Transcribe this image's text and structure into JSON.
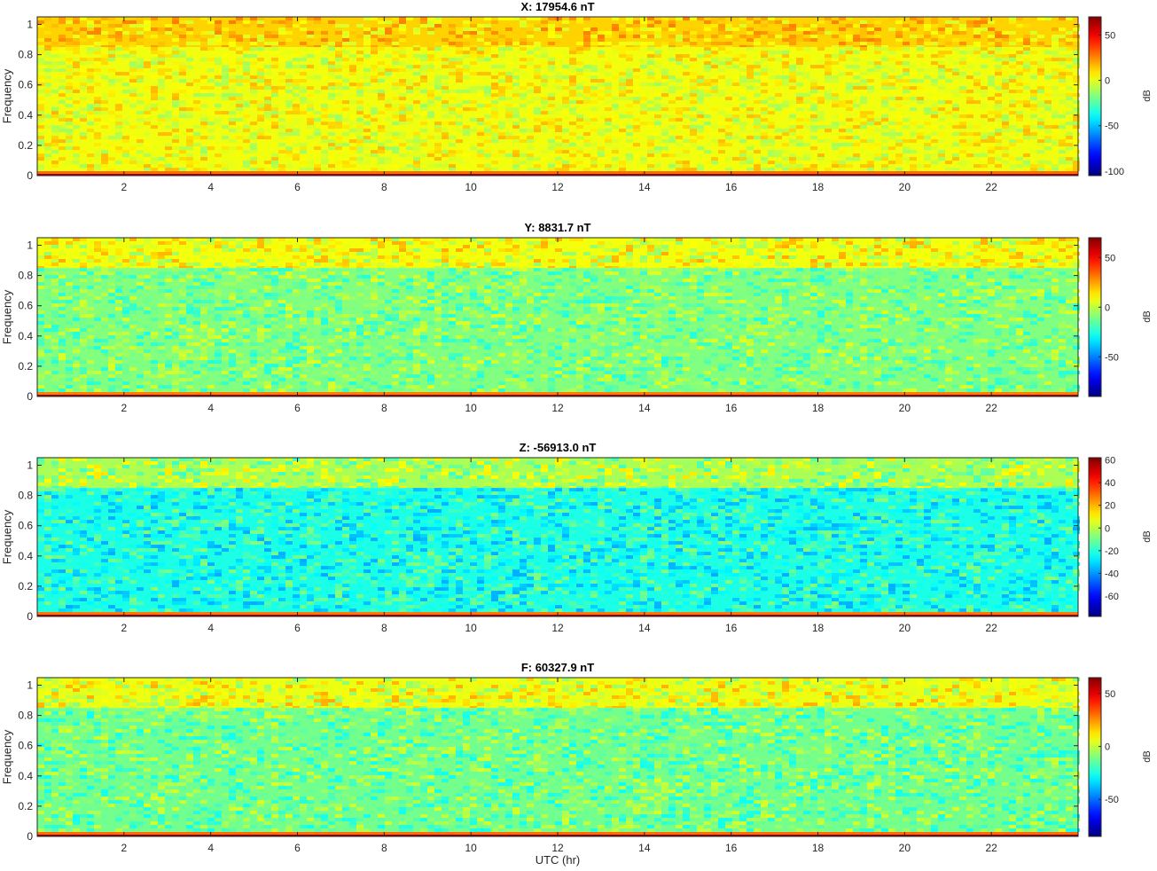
{
  "chart_data": [
    {
      "type": "heatmap",
      "title": "X: 17954.6 nT",
      "ylabel": "Frequency",
      "xlim": [
        0,
        24
      ],
      "ylim": [
        0,
        1.05
      ],
      "xticks": [
        2,
        4,
        6,
        8,
        10,
        12,
        14,
        16,
        18,
        20,
        22
      ],
      "yticks": [
        0,
        0.2,
        0.4,
        0.6,
        0.8,
        1
      ],
      "colorbar": {
        "label": "dB",
        "range": [
          -105,
          70
        ],
        "ticks": [
          50,
          0,
          -50,
          -100
        ]
      },
      "bands": [
        {
          "y_from": 0.0,
          "y_to": 0.012,
          "db": 65
        },
        {
          "y_from": 0.012,
          "y_to": 0.03,
          "db": 30
        },
        {
          "y_from": 0.03,
          "y_to": 0.85,
          "db": 2
        },
        {
          "y_from": 0.85,
          "y_to": 1.05,
          "db": 12
        }
      ]
    },
    {
      "type": "heatmap",
      "title": "Y: 8831.7 nT",
      "ylabel": "Frequency",
      "xlim": [
        0,
        24
      ],
      "ylim": [
        0,
        1.05
      ],
      "xticks": [
        2,
        4,
        6,
        8,
        10,
        12,
        14,
        16,
        18,
        20,
        22
      ],
      "yticks": [
        0,
        0.2,
        0.4,
        0.6,
        0.8,
        1
      ],
      "colorbar": {
        "label": "dB",
        "range": [
          -90,
          70
        ],
        "ticks": [
          50,
          0,
          -50
        ]
      },
      "bands": [
        {
          "y_from": 0.0,
          "y_to": 0.012,
          "db": 65
        },
        {
          "y_from": 0.012,
          "y_to": 0.03,
          "db": 30
        },
        {
          "y_from": 0.03,
          "y_to": 0.85,
          "db": -10
        },
        {
          "y_from": 0.85,
          "y_to": 1.05,
          "db": 8
        }
      ]
    },
    {
      "type": "heatmap",
      "title": "Z: -56913.0 nT",
      "ylabel": "Frequency",
      "xlim": [
        0,
        24
      ],
      "ylim": [
        0,
        1.05
      ],
      "xticks": [
        2,
        4,
        6,
        8,
        10,
        12,
        14,
        16,
        18,
        20,
        22
      ],
      "yticks": [
        0,
        0.2,
        0.4,
        0.6,
        0.8,
        1
      ],
      "colorbar": {
        "label": "dB",
        "range": [
          -78,
          62
        ],
        "ticks": [
          60,
          40,
          20,
          0,
          -20,
          -40,
          -60
        ]
      },
      "bands": [
        {
          "y_from": 0.0,
          "y_to": 0.012,
          "db": 58
        },
        {
          "y_from": 0.012,
          "y_to": 0.03,
          "db": 28
        },
        {
          "y_from": 0.03,
          "y_to": 0.85,
          "db": -22
        },
        {
          "y_from": 0.85,
          "y_to": 1.05,
          "db": -2
        }
      ]
    },
    {
      "type": "heatmap",
      "title": "F: 60327.9 nT",
      "ylabel": "Frequency",
      "xlabel": "UTC (hr)",
      "xlim": [
        0,
        24
      ],
      "ylim": [
        0,
        1.05
      ],
      "xticks": [
        2,
        4,
        6,
        8,
        10,
        12,
        14,
        16,
        18,
        20,
        22
      ],
      "yticks": [
        0,
        0.2,
        0.4,
        0.6,
        0.8,
        1
      ],
      "colorbar": {
        "label": "dB",
        "range": [
          -85,
          65
        ],
        "ticks": [
          50,
          0,
          -50
        ]
      },
      "bands": [
        {
          "y_from": 0.0,
          "y_to": 0.012,
          "db": 62
        },
        {
          "y_from": 0.012,
          "y_to": 0.03,
          "db": 30
        },
        {
          "y_from": 0.03,
          "y_to": 0.85,
          "db": -12
        },
        {
          "y_from": 0.85,
          "y_to": 1.05,
          "db": 6
        }
      ]
    }
  ],
  "colors": {
    "colormap": "jet",
    "axis": "#262626",
    "background": "#ffffff"
  }
}
